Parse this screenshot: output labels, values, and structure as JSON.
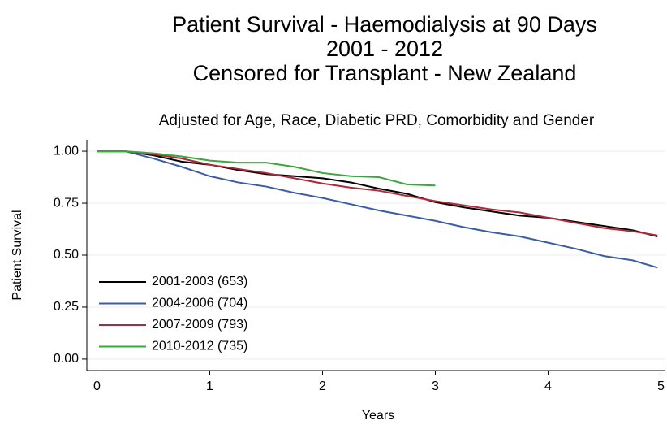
{
  "chart_data": {
    "type": "line",
    "title": [
      "Patient Survival - Haemodialysis at 90 Days",
      "2001 - 2012",
      "Censored for Transplant - New Zealand"
    ],
    "subtitle": "Adjusted for Age, Race, Diabetic PRD, Comorbidity and Gender",
    "xlabel": "Years",
    "ylabel": "Patient Survival",
    "x": [
      0,
      0.25,
      0.5,
      0.75,
      1,
      1.25,
      1.5,
      1.75,
      2,
      2.25,
      2.5,
      2.75,
      3,
      3.25,
      3.5,
      3.75,
      4,
      4.25,
      4.5,
      4.75,
      4.97
    ],
    "series": [
      {
        "name": "2001-2003 (653)",
        "color": "#000000",
        "values": [
          1,
          1,
          0.98,
          0.95,
          0.935,
          0.91,
          0.89,
          0.88,
          0.87,
          0.85,
          0.82,
          0.795,
          0.755,
          0.73,
          0.71,
          0.69,
          0.68,
          0.66,
          0.64,
          0.62,
          0.59
        ]
      },
      {
        "name": "2004-2006 (704)",
        "color": "#3a5ca8",
        "values": [
          1,
          1,
          0.965,
          0.925,
          0.88,
          0.85,
          0.83,
          0.8,
          0.775,
          0.745,
          0.715,
          0.69,
          0.665,
          0.635,
          0.61,
          0.59,
          0.56,
          0.53,
          0.495,
          0.475,
          0.44
        ]
      },
      {
        "name": "2007-2009 (793)",
        "color": "#b0283a",
        "values": [
          1,
          1,
          0.985,
          0.965,
          0.935,
          0.915,
          0.895,
          0.87,
          0.845,
          0.825,
          0.81,
          0.785,
          0.76,
          0.74,
          0.72,
          0.705,
          0.68,
          0.655,
          0.63,
          0.615,
          0.595
        ]
      },
      {
        "name": "2010-2012 (735)",
        "color": "#3aa83a",
        "values": [
          1,
          1,
          0.99,
          0.975,
          0.955,
          0.945,
          0.945,
          0.925,
          0.895,
          0.88,
          0.875,
          0.84,
          0.835,
          null,
          null,
          null,
          null,
          null,
          null,
          null,
          null
        ]
      }
    ],
    "xlim": [
      -0.09,
      5.04
    ],
    "xticks": [
      0,
      1,
      2,
      3,
      4,
      5
    ],
    "ylim": [
      -0.055,
      1.055
    ],
    "yticks": [
      {
        "value": 0,
        "label": "0.00"
      },
      0.25,
      {
        "value": 0.5,
        "label": "0.50"
      },
      0.75,
      {
        "value": 1,
        "label": "1.00"
      }
    ],
    "grid": true,
    "legend": "lower-left"
  }
}
